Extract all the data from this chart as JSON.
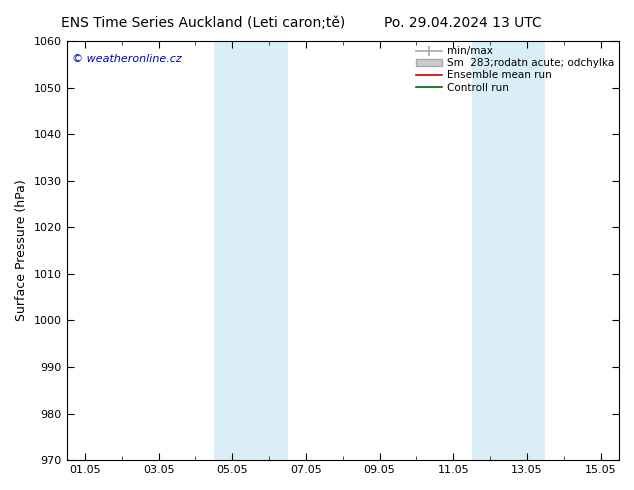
{
  "title_left": "ENS Time Series Auckland (Leti caron;tě)",
  "title_right": "Po. 29.04.2024 13 UTC",
  "ylabel": "Surface Pressure (hPa)",
  "ylim": [
    970,
    1060
  ],
  "yticks": [
    970,
    980,
    990,
    1000,
    1010,
    1020,
    1030,
    1040,
    1050,
    1060
  ],
  "xtick_labels": [
    "01.05",
    "03.05",
    "05.05",
    "07.05",
    "09.05",
    "11.05",
    "13.05",
    "15.05"
  ],
  "xtick_positions": [
    0,
    2,
    4,
    6,
    8,
    10,
    12,
    14
  ],
  "xlim": [
    -0.5,
    14.5
  ],
  "blue_bands": [
    {
      "start": 3.5,
      "end": 5.5
    },
    {
      "start": 10.5,
      "end": 12.5
    }
  ],
  "band_color": "#daeef8",
  "background_color": "#ffffff",
  "copyright_text": "© weatheronline.cz",
  "copyright_color": "#0000cc",
  "title_fontsize": 10,
  "ylabel_fontsize": 9,
  "tick_fontsize": 8,
  "legend_fontsize": 7.5
}
